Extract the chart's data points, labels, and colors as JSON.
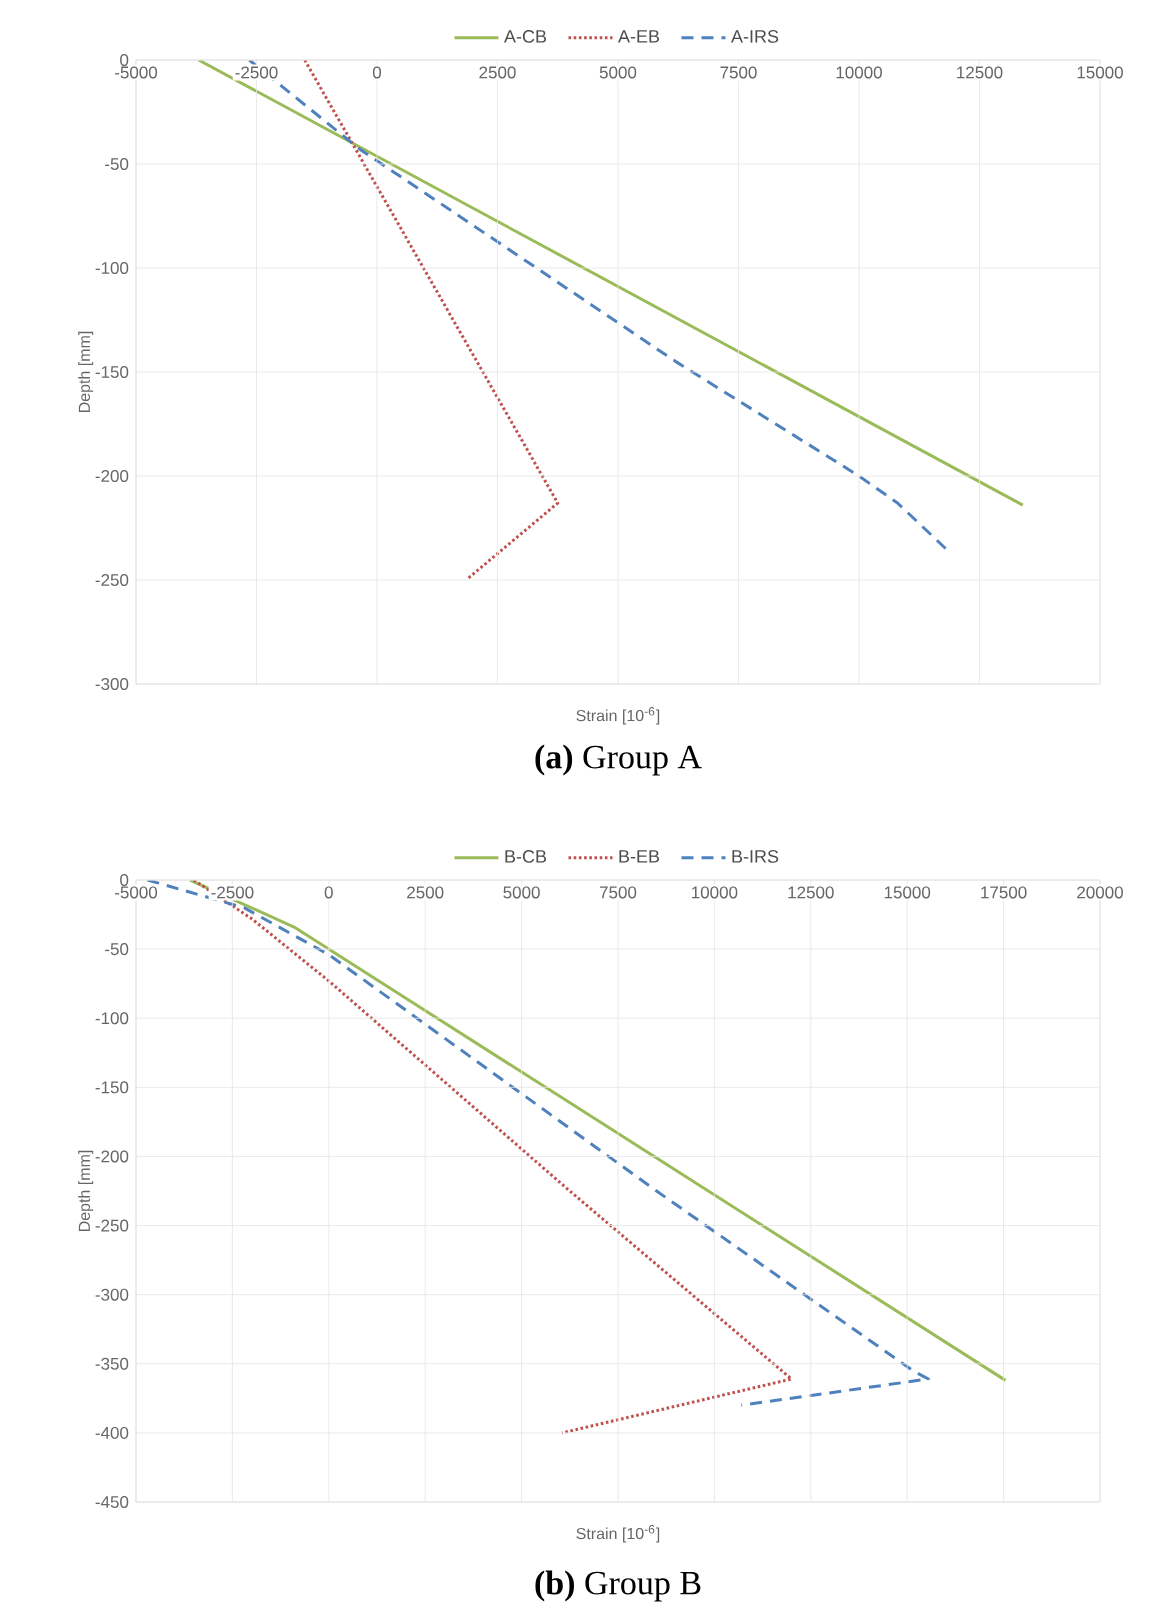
{
  "chart_data": [
    {
      "type": "line",
      "annotations": [
        "**(a)** Group A"
      ],
      "xlabel": "Strain [10$^{-6}$]",
      "ylabel": "Depth [mm]",
      "xlim": [
        -5000,
        15000
      ],
      "ylim": [
        -300,
        0
      ],
      "xticks": [
        -5000,
        -2500,
        0,
        2500,
        5000,
        7500,
        10000,
        12500,
        15000
      ],
      "yticks": [
        -300,
        -250,
        -200,
        -150,
        -100,
        -50,
        0
      ],
      "grid": true,
      "legend": "top",
      "series": [
        {
          "name": "A-CB",
          "color": "#9bbb59",
          "line_style": "solid",
          "x": [
            -3700,
            13400
          ],
          "values": [
            0,
            -214
          ]
        },
        {
          "name": "A-EB",
          "color": "#c0504d",
          "line_style": "dotted",
          "x": [
            -1500,
            3750,
            1900
          ],
          "values": [
            0,
            -213,
            -249
          ]
        },
        {
          "name": "A-IRS",
          "color": "#4f81bd",
          "line_style": "dashed",
          "x": [
            -2650,
            -350,
            6200,
            10000,
            10800,
            11850
          ],
          "values": [
            0,
            -43,
            -145,
            -200,
            -213,
            -236
          ]
        }
      ]
    },
    {
      "type": "line",
      "annotations": [
        "**(b)** Group B"
      ],
      "xlabel": "Strain [10$^{-6}$]",
      "ylabel": "Depth [mm]",
      "xlim": [
        -5000,
        20000
      ],
      "ylim": [
        -450,
        0
      ],
      "xticks": [
        -5000,
        -2500,
        0,
        2500,
        5000,
        7500,
        10000,
        12500,
        15000,
        17500,
        20000
      ],
      "yticks": [
        -450,
        -400,
        -350,
        -300,
        -250,
        -200,
        -150,
        -100,
        -50,
        0
      ],
      "grid": true,
      "legend": "top",
      "series": [
        {
          "name": "B-CB",
          "color": "#9bbb59",
          "line_style": "solid",
          "x": [
            -3600,
            -900,
            17550
          ],
          "values": [
            0,
            -34,
            -362
          ]
        },
        {
          "name": "B-EB",
          "color": "#c0504d",
          "line_style": "dotted",
          "x": [
            -3500,
            -2000,
            0,
            6250,
            12000,
            6050
          ],
          "values": [
            0,
            -28,
            -73,
            -225,
            -361,
            -400
          ]
        },
        {
          "name": "B-IRS",
          "color": "#4f81bd",
          "line_style": "dashed",
          "x": [
            -4700,
            -2200,
            0,
            8500,
            15150,
            15550,
            10700
          ],
          "values": [
            0,
            -20,
            -54,
            -225,
            -355,
            -361,
            -380
          ]
        }
      ]
    }
  ]
}
